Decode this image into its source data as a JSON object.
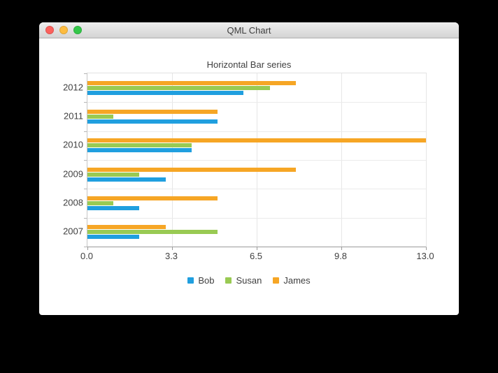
{
  "window": {
    "title": "QML Chart",
    "traffic_lights": [
      {
        "name": "close",
        "color": "#fc615d"
      },
      {
        "name": "minimize",
        "color": "#fdbc40"
      },
      {
        "name": "zoom",
        "color": "#34c749"
      }
    ]
  },
  "chart_data": {
    "type": "bar",
    "orientation": "horizontal",
    "title": "Horizontal Bar series",
    "categories": [
      "2007",
      "2008",
      "2009",
      "2010",
      "2011",
      "2012"
    ],
    "series": [
      {
        "name": "Bob",
        "color": "#209fdf",
        "values": [
          2,
          2,
          3,
          4,
          5,
          6
        ]
      },
      {
        "name": "Susan",
        "color": "#99ca53",
        "values": [
          5,
          1,
          2,
          4,
          1,
          7
        ]
      },
      {
        "name": "James",
        "color": "#f6a625",
        "values": [
          3,
          5,
          8,
          13,
          5,
          8
        ]
      }
    ],
    "xlim": [
      0,
      13
    ],
    "x_tick_labels": [
      "0.0",
      "3.3",
      "6.5",
      "9.8",
      "13.0"
    ],
    "y_axis_order_top_to_bottom": [
      "2012",
      "2011",
      "2010",
      "2009",
      "2008",
      "2007"
    ],
    "grid": true,
    "legend_position": "bottom"
  }
}
